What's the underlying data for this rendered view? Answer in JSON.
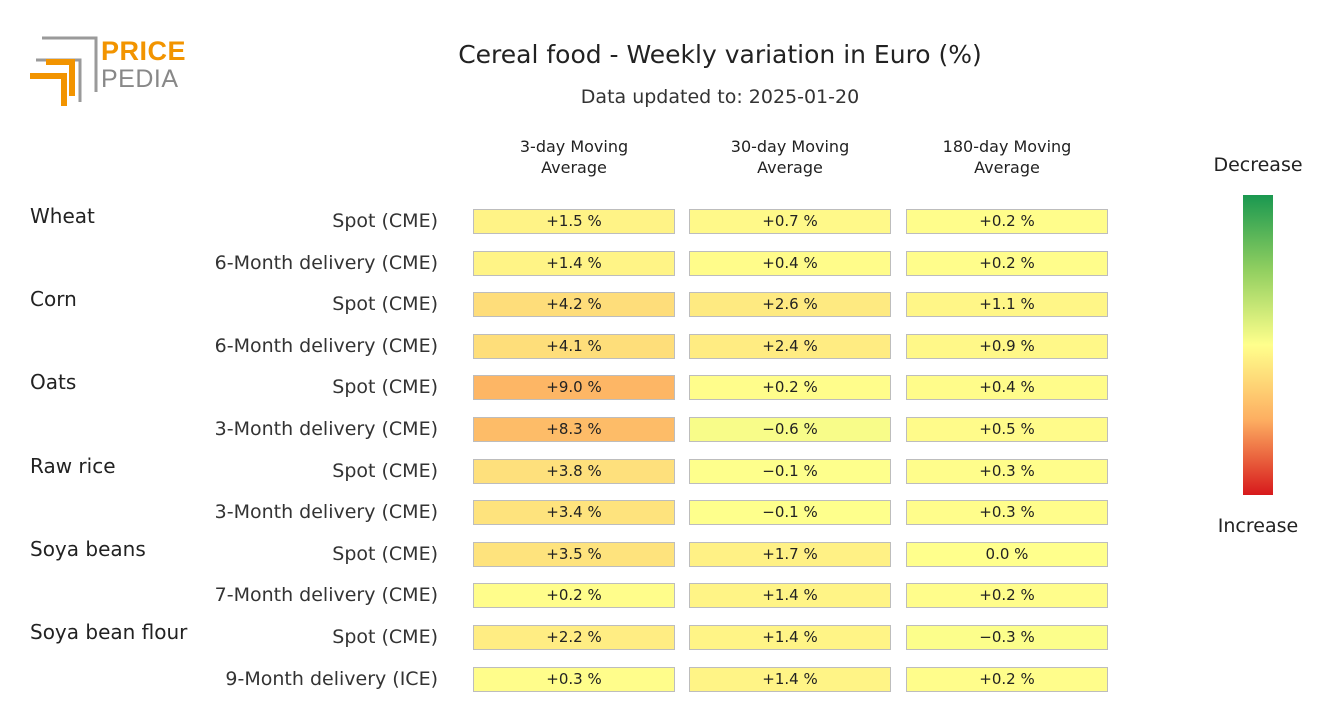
{
  "logo": {
    "top": "PRICE",
    "bottom": "PEDIA",
    "orange": "#f29400",
    "gray": "#9a9a9a"
  },
  "legend": {
    "top": "Decrease",
    "bottom": "Increase"
  },
  "chart_data": {
    "type": "table",
    "title": "Cereal food - Weekly variation in Euro (%)",
    "subtitle": "Data updated to: 2025-01-20",
    "columns": [
      "3-day Moving\nAverage",
      "30-day Moving\nAverage",
      "180-day Moving\nAverage"
    ],
    "groups": [
      {
        "name": "Wheat",
        "rows": [
          {
            "label": "Spot (CME)",
            "values": [
              1.5,
              0.7,
              0.2
            ],
            "texts": [
              "+1.5 %",
              "+0.7 %",
              "+0.2 %"
            ]
          },
          {
            "label": "6-Month delivery (CME)",
            "values": [
              1.4,
              0.4,
              0.2
            ],
            "texts": [
              "+1.4 %",
              "+0.4 %",
              "+0.2 %"
            ]
          }
        ]
      },
      {
        "name": "Corn",
        "rows": [
          {
            "label": "Spot (CME)",
            "values": [
              4.2,
              2.6,
              1.1
            ],
            "texts": [
              "+4.2 %",
              "+2.6 %",
              "+1.1 %"
            ]
          },
          {
            "label": "6-Month delivery (CME)",
            "values": [
              4.1,
              2.4,
              0.9
            ],
            "texts": [
              "+4.1 %",
              "+2.4 %",
              "+0.9 %"
            ]
          }
        ]
      },
      {
        "name": "Oats",
        "rows": [
          {
            "label": "Spot (CME)",
            "values": [
              9.0,
              0.2,
              0.4
            ],
            "texts": [
              "+9.0 %",
              "+0.2 %",
              "+0.4 %"
            ]
          },
          {
            "label": "3-Month delivery (CME)",
            "values": [
              8.3,
              -0.6,
              0.5
            ],
            "texts": [
              "+8.3 %",
              "−0.6 %",
              "+0.5 %"
            ]
          }
        ]
      },
      {
        "name": "Raw rice",
        "rows": [
          {
            "label": "Spot (CME)",
            "values": [
              3.8,
              -0.1,
              0.3
            ],
            "texts": [
              "+3.8 %",
              "−0.1 %",
              "+0.3 %"
            ]
          },
          {
            "label": "3-Month delivery (CME)",
            "values": [
              3.4,
              -0.1,
              0.3
            ],
            "texts": [
              "+3.4 %",
              "−0.1 %",
              "+0.3 %"
            ]
          }
        ]
      },
      {
        "name": "Soya beans",
        "rows": [
          {
            "label": "Spot (CME)",
            "values": [
              3.5,
              1.7,
              0.0
            ],
            "texts": [
              "+3.5 %",
              "+1.7 %",
              "0.0 %"
            ]
          },
          {
            "label": "7-Month delivery (CME)",
            "values": [
              0.2,
              1.4,
              0.2
            ],
            "texts": [
              "+0.2 %",
              "+1.4 %",
              "+0.2 %"
            ]
          }
        ]
      },
      {
        "name": "Soya bean flour",
        "rows": [
          {
            "label": "Spot (CME)",
            "values": [
              2.2,
              1.4,
              -0.3
            ],
            "texts": [
              "+2.2 %",
              "+1.4 %",
              "−0.3 %"
            ]
          },
          {
            "label": "9-Month delivery (ICE)",
            "values": [
              0.3,
              1.4,
              0.2
            ],
            "texts": [
              "+0.3 %",
              "+1.4 %",
              "+0.2 %"
            ]
          }
        ]
      }
    ],
    "color_scale": {
      "stops": [
        "#1a9850",
        "#91cf60",
        "#ffff8c",
        "#fdae61",
        "#d7191c"
      ],
      "domain": [
        -20,
        -10,
        0,
        10,
        20
      ],
      "low_label": "Decrease",
      "high_label": "Increase"
    }
  }
}
